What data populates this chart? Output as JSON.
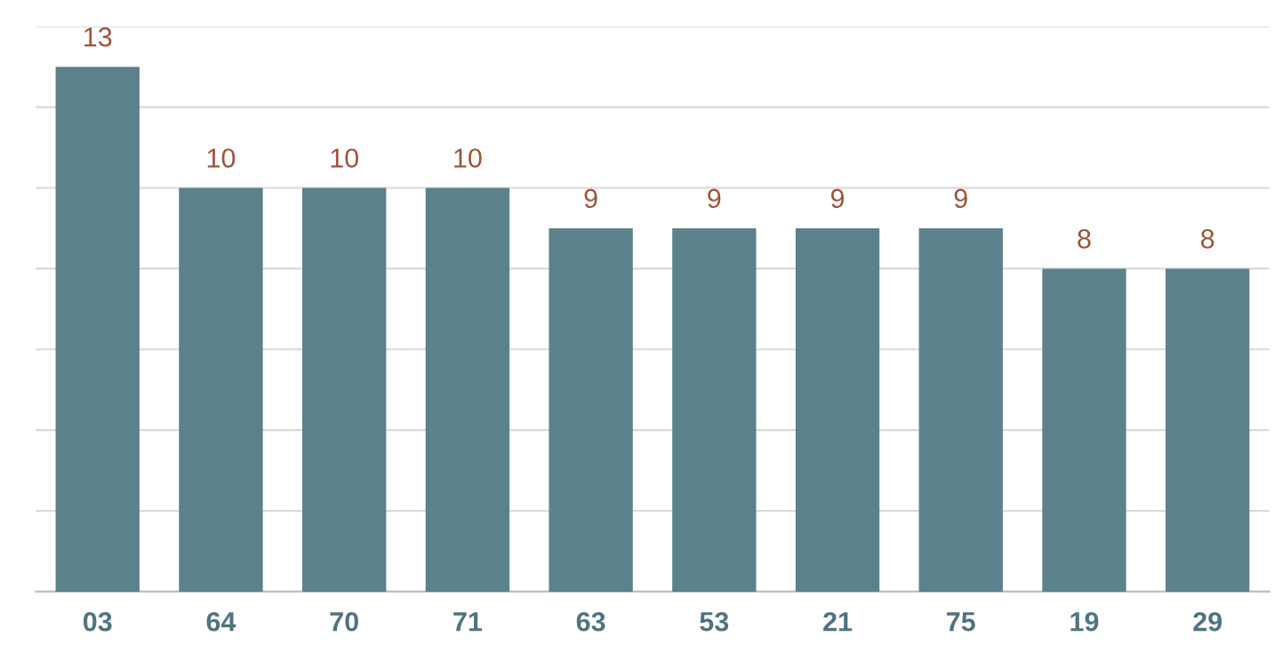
{
  "chart_data": {
    "type": "bar",
    "categories": [
      "03",
      "64",
      "70",
      "71",
      "63",
      "53",
      "21",
      "75",
      "19",
      "29"
    ],
    "values": [
      13,
      10,
      10,
      10,
      9,
      9,
      9,
      9,
      8,
      8
    ],
    "color": "#5b818b",
    "data_labels": true,
    "ylim": [
      0,
      14
    ],
    "yticks": [
      {
        "value": 0,
        "label": null
      },
      {
        "value": 2,
        "label": null
      },
      {
        "value": 4,
        "label": null
      },
      {
        "value": 6,
        "label": null
      },
      {
        "value": 8,
        "label": null
      },
      {
        "value": 10,
        "label": null
      },
      {
        "value": 12,
        "label": null
      },
      {
        "value": 14,
        "label": null
      }
    ],
    "grid": "y",
    "tick_labels": "x",
    "legend": false
  }
}
